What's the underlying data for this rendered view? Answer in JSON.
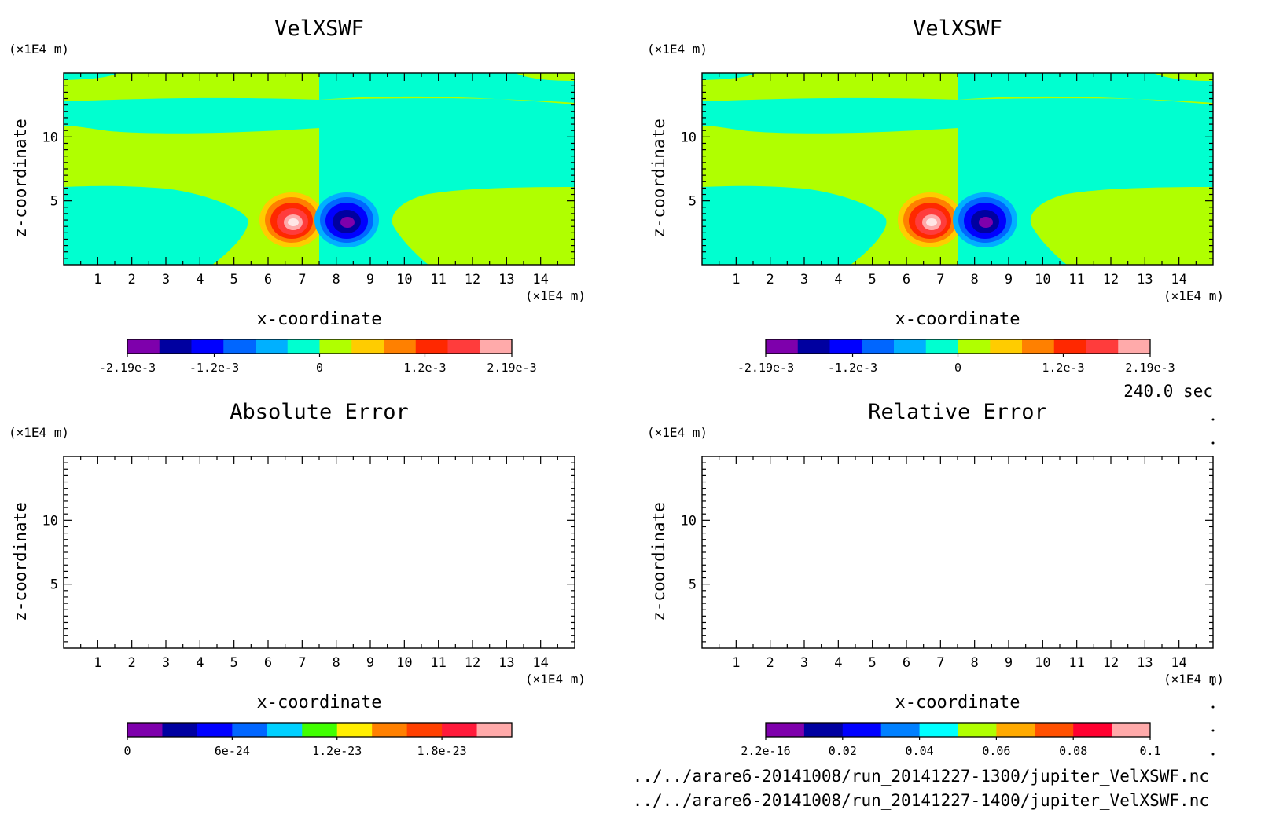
{
  "time_label": "240.0 sec",
  "files": [
    "../../arare6-20141008/run_20141227-1300/jupiter_VelXSWF.nc",
    "../../arare6-20141008/run_20141227-1400/jupiter_VelXSWF.nc"
  ],
  "colors": {
    "field_levels": [
      "#7e00ac",
      "#0000a0",
      "#0000ff",
      "#0066ff",
      "#00b0ff",
      "#00ffd0",
      "#b0ff00",
      "#ffcc00",
      "#ff8000",
      "#ff2800",
      "#ff3c3c",
      "#ffaaaa"
    ],
    "abs_levels": [
      "#7e00ac",
      "#0000a0",
      "#0000ff",
      "#0066ff",
      "#00d0ff",
      "#40ff00",
      "#ffee00",
      "#ff8000",
      "#ff4000",
      "#ff1a3a",
      "#ffaaaa"
    ],
    "rel_levels": [
      "#7e00ac",
      "#0000a0",
      "#0000ff",
      "#0080ff",
      "#00ffff",
      "#b0ff00",
      "#ffaa00",
      "#ff5000",
      "#ff0030",
      "#ffaaaa"
    ]
  },
  "chart_data": [
    {
      "type": "heatmap",
      "title": "VelXSWF",
      "xlabel": "x-coordinate",
      "ylabel": "z-coordinate",
      "x_unit": "(×1E4 m)",
      "y_unit": "(×1E4 m)",
      "xlim": [
        0,
        15
      ],
      "ylim": [
        0,
        15
      ],
      "x_ticks": [
        1,
        2,
        3,
        4,
        5,
        6,
        7,
        8,
        9,
        10,
        11,
        12,
        13,
        14
      ],
      "y_ticks": [
        5,
        10
      ],
      "colorbar": {
        "range": [
          -0.00219,
          0.00219
        ],
        "levels": 12,
        "tick_labels": [
          {
            "value": -0.00219,
            "label": "-2.19e-3"
          },
          {
            "value": -0.0012,
            "label": "-1.2e-3"
          },
          {
            "value": 0,
            "label": "0"
          },
          {
            "value": 0.0012,
            "label": "1.2e-3"
          },
          {
            "value": 0.00219,
            "label": "2.19e-3"
          }
        ]
      },
      "features": [
        {
          "kind": "positive_vortex",
          "x": 6.7,
          "z": 3.2,
          "peak": 0.00219
        },
        {
          "kind": "negative_vortex",
          "x": 8.3,
          "z": 3.2,
          "peak": -0.00219
        }
      ]
    },
    {
      "type": "heatmap",
      "title": "VelXSWF",
      "xlabel": "x-coordinate",
      "ylabel": "z-coordinate",
      "x_unit": "(×1E4 m)",
      "y_unit": "(×1E4 m)",
      "xlim": [
        0,
        15
      ],
      "ylim": [
        0,
        15
      ],
      "x_ticks": [
        1,
        2,
        3,
        4,
        5,
        6,
        7,
        8,
        9,
        10,
        11,
        12,
        13,
        14
      ],
      "y_ticks": [
        5,
        10
      ],
      "colorbar": {
        "range": [
          -0.00219,
          0.00219
        ],
        "levels": 12,
        "tick_labels": [
          {
            "value": -0.00219,
            "label": "-2.19e-3"
          },
          {
            "value": -0.0012,
            "label": "-1.2e-3"
          },
          {
            "value": 0,
            "label": "0"
          },
          {
            "value": 0.0012,
            "label": "1.2e-3"
          },
          {
            "value": 0.00219,
            "label": "2.19e-3"
          }
        ]
      },
      "features": [
        {
          "kind": "positive_vortex",
          "x": 6.7,
          "z": 3.2,
          "peak": 0.00219
        },
        {
          "kind": "negative_vortex",
          "x": 8.3,
          "z": 3.2,
          "peak": -0.00219
        }
      ]
    },
    {
      "type": "heatmap",
      "title": "Absolute Error",
      "xlabel": "x-coordinate",
      "ylabel": "z-coordinate",
      "x_unit": "(×1E4 m)",
      "y_unit": "(×1E4 m)",
      "xlim": [
        0,
        15
      ],
      "ylim": [
        0,
        15
      ],
      "x_ticks": [
        1,
        2,
        3,
        4,
        5,
        6,
        7,
        8,
        9,
        10,
        11,
        12,
        13,
        14
      ],
      "y_ticks": [
        5,
        10
      ],
      "colorbar": {
        "range": [
          0,
          2.2e-23
        ],
        "levels": 11,
        "tick_labels": [
          {
            "value": 0,
            "label": "0"
          },
          {
            "value": 6e-24,
            "label": "6e-24"
          },
          {
            "value": 1.2e-23,
            "label": "1.2e-23"
          },
          {
            "value": 1.8e-23,
            "label": "1.8e-23"
          }
        ]
      },
      "features": []
    },
    {
      "type": "heatmap",
      "title": "Relative Error",
      "xlabel": "x-coordinate",
      "ylabel": "z-coordinate",
      "x_unit": "(×1E4 m)",
      "y_unit": "(×1E4 m)",
      "xlim": [
        0,
        15
      ],
      "ylim": [
        0,
        15
      ],
      "x_ticks": [
        1,
        2,
        3,
        4,
        5,
        6,
        7,
        8,
        9,
        10,
        11,
        12,
        13,
        14
      ],
      "y_ticks": [
        5,
        10
      ],
      "colorbar": {
        "range": [
          2.2e-16,
          0.1
        ],
        "levels": 10,
        "tick_labels": [
          {
            "value": 2.2e-16,
            "label": "2.2e-16"
          },
          {
            "value": 0.02,
            "label": "0.02"
          },
          {
            "value": 0.04,
            "label": "0.04"
          },
          {
            "value": 0.06,
            "label": "0.06"
          },
          {
            "value": 0.08,
            "label": "0.08"
          },
          {
            "value": 0.1,
            "label": "0.1"
          }
        ]
      },
      "features": []
    }
  ]
}
